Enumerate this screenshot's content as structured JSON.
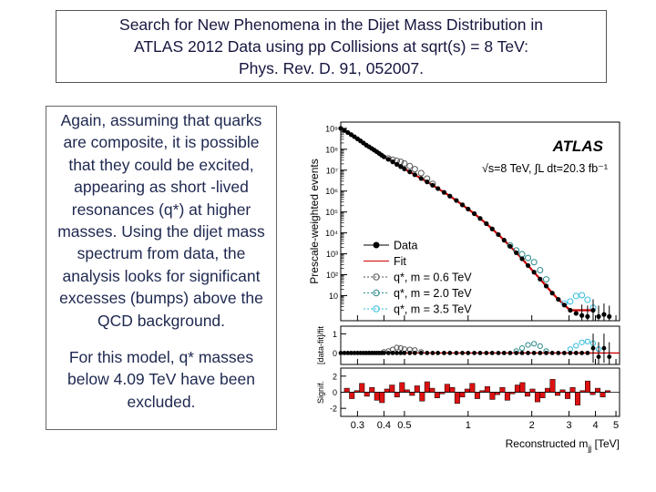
{
  "slide": {
    "title_lines": [
      "Search for New Phenomena in the Dijet Mass Distribution in",
      "ATLAS 2012 Data using pp Collisions at sqrt(s) = 8 TeV:",
      "Phys. Rev. D. 91, 052007."
    ],
    "paragraph1": "Again, assuming that quarks are composite, it is possible that they could be excited, appearing as short -lived resonances (q*) at higher masses.  Using the dijet mass spectrum from data, the analysis looks for significant excesses (bumps) above the QCD background.",
    "paragraph2": "For this model, q* masses below 4.09 TeV have been excluded."
  },
  "chart_data": {
    "type": "scatter",
    "title": "ATLAS",
    "subtitle": "√s=8 TeV, ∫L dt=20.3 fb⁻¹",
    "xlabel": "Reconstructed m",
    "xlabel_sub": "jj",
    "xlabel_unit": " [TeV]",
    "ylabel": "Prescale-weighted events",
    "x_ticks": [
      "0.3",
      "0.4",
      "0.5",
      "1",
      "2",
      "3",
      "4",
      "5"
    ],
    "x_tick_values": [
      0.3,
      0.4,
      0.5,
      1,
      2,
      3,
      4,
      5
    ],
    "xlim": [
      0.25,
      5.2
    ],
    "y_log_ticks": [
      "10",
      "10²",
      "10³",
      "10⁴",
      "10⁵",
      "10⁶",
      "10⁷",
      "10⁸",
      "10⁹"
    ],
    "y_log_tick_exponents": [
      1,
      2,
      3,
      4,
      5,
      6,
      7,
      8,
      9
    ],
    "ylim_log_exponent": [
      -0.2,
      9.3
    ],
    "ratio_ylabel": "[data-fit]/fit",
    "ratio_ticks": [
      "1",
      "0"
    ],
    "ratio_tick_values": [
      1,
      0
    ],
    "ratio_ylim": [
      -0.6,
      1.4
    ],
    "signif_ylabel": "Signif.",
    "signif_ticks": [
      "2",
      "0",
      "-2"
    ],
    "signif_tick_values": [
      2,
      0,
      -2
    ],
    "signif_ylim": [
      -3,
      3
    ],
    "legend": [
      {
        "label": "Data",
        "color": "#000000",
        "style": "dot-line"
      },
      {
        "label": "Fit",
        "color": "#cc0000",
        "style": "line"
      },
      {
        "label": "q*, m = 0.6 TeV",
        "color": "#555555",
        "style": "circle-dash"
      },
      {
        "label": "q*, m = 2.0 TeV",
        "color": "#2a8a8a",
        "style": "circle-dash"
      },
      {
        "label": "q*, m = 3.5 TeV",
        "color": "#33bbdd",
        "style": "circle-dash"
      }
    ],
    "data_x": [
      0.25,
      0.26,
      0.27,
      0.28,
      0.29,
      0.3,
      0.31,
      0.32,
      0.33,
      0.34,
      0.35,
      0.36,
      0.37,
      0.38,
      0.39,
      0.4,
      0.42,
      0.44,
      0.46,
      0.48,
      0.5,
      0.53,
      0.56,
      0.6,
      0.64,
      0.68,
      0.72,
      0.77,
      0.82,
      0.88,
      0.94,
      1.0,
      1.07,
      1.14,
      1.22,
      1.3,
      1.39,
      1.48,
      1.58,
      1.69,
      1.8,
      1.92,
      2.05,
      2.19,
      2.34,
      2.5,
      2.67,
      2.85,
      3.04,
      3.24,
      3.45,
      3.67,
      3.9,
      4.14,
      4.39,
      4.65
    ],
    "data_log_y": [
      9.0,
      8.9,
      8.8,
      8.7,
      8.6,
      8.5,
      8.4,
      8.3,
      8.2,
      8.12,
      8.04,
      7.96,
      7.88,
      7.8,
      7.72,
      7.64,
      7.52,
      7.4,
      7.28,
      7.17,
      7.06,
      6.92,
      6.78,
      6.6,
      6.44,
      6.28,
      6.12,
      5.94,
      5.76,
      5.55,
      5.34,
      5.14,
      4.92,
      4.69,
      4.44,
      4.19,
      3.92,
      3.65,
      3.36,
      3.05,
      2.76,
      2.44,
      2.12,
      1.79,
      1.46,
      1.12,
      0.82,
      0.55,
      0.3,
      0.15,
      0.05,
      0.0,
      0.3,
      0.0,
      0.1,
      0.0
    ],
    "qstar_0_6": {
      "x": [
        0.42,
        0.44,
        0.46,
        0.48,
        0.5,
        0.53,
        0.56,
        0.6,
        0.64,
        0.68
      ],
      "log_y": [
        7.56,
        7.5,
        7.45,
        7.4,
        7.32,
        7.2,
        7.05,
        6.86,
        6.6,
        6.35
      ]
    },
    "qstar_2_0": {
      "x": [
        1.58,
        1.69,
        1.8,
        1.92,
        2.05,
        2.19,
        2.34
      ],
      "log_y": [
        3.4,
        3.16,
        2.98,
        2.8,
        2.6,
        2.22,
        1.78
      ]
    },
    "qstar_3_5": {
      "x": [
        2.85,
        3.04,
        3.24,
        3.45,
        3.67,
        3.9
      ],
      "log_y": [
        0.62,
        0.72,
        0.98,
        1.02,
        0.8,
        0.42
      ]
    },
    "ratio_bumps": [
      {
        "x": [
          0.4,
          0.42,
          0.44,
          0.46,
          0.48,
          0.5,
          0.53,
          0.56,
          0.6
        ],
        "y": [
          0.05,
          0.1,
          0.18,
          0.28,
          0.26,
          0.2,
          0.18,
          0.15,
          0.05
        ],
        "color": "#555555"
      },
      {
        "x": [
          1.69,
          1.8,
          1.92,
          2.05,
          2.19,
          2.34
        ],
        "y": [
          0.1,
          0.25,
          0.42,
          0.48,
          0.36,
          0.1
        ],
        "color": "#2a8a8a"
      },
      {
        "x": [
          3.04,
          3.24,
          3.45,
          3.67,
          3.9,
          4.14
        ],
        "y": [
          0.2,
          0.38,
          0.55,
          0.6,
          0.5,
          0.2
        ],
        "color": "#33bbdd"
      }
    ],
    "significance_values": [
      0.5,
      -0.8,
      0.2,
      1.1,
      -0.5,
      0.6,
      -1.0,
      -1.3,
      0.4,
      0.9,
      -0.6,
      1.2,
      0.3,
      -0.4,
      0.8,
      -1.1,
      1.3,
      0.5,
      -0.7,
      -0.2,
      1.0,
      0.6,
      -1.4,
      -0.6,
      0.4,
      1.1,
      -0.8,
      0.2,
      0.7,
      -0.9,
      -0.3,
      0.6,
      -1.0,
      -0.2,
      0.9,
      1.2,
      -0.5,
      0.4,
      -1.2,
      -0.7,
      0.5,
      1.6,
      -0.4,
      0.3,
      -0.8,
      0.6,
      -1.6,
      0.2,
      1.4,
      -0.3,
      0.5,
      -0.6,
      0.2
    ]
  }
}
